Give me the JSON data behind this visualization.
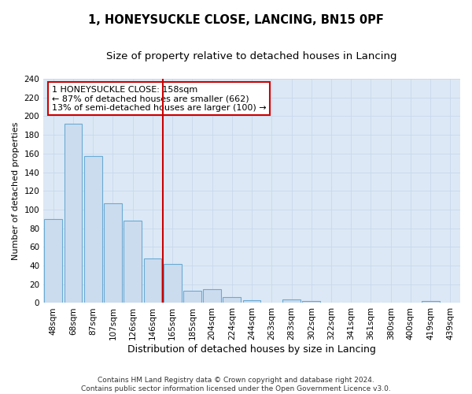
{
  "title": "1, HONEYSUCKLE CLOSE, LANCING, BN15 0PF",
  "subtitle": "Size of property relative to detached houses in Lancing",
  "xlabel": "Distribution of detached houses by size in Lancing",
  "ylabel": "Number of detached properties",
  "bar_labels": [
    "48sqm",
    "68sqm",
    "87sqm",
    "107sqm",
    "126sqm",
    "146sqm",
    "165sqm",
    "185sqm",
    "204sqm",
    "224sqm",
    "244sqm",
    "263sqm",
    "283sqm",
    "302sqm",
    "322sqm",
    "341sqm",
    "361sqm",
    "380sqm",
    "400sqm",
    "419sqm",
    "439sqm"
  ],
  "bar_values": [
    90,
    192,
    157,
    107,
    88,
    48,
    42,
    13,
    15,
    6,
    3,
    0,
    4,
    2,
    0,
    0,
    0,
    0,
    0,
    2,
    0
  ],
  "bar_color": "#ccdcef",
  "bar_edgecolor": "#6aaad4",
  "vline_x_idx": 6,
  "vline_color": "#cc0000",
  "annotation_text_line1": "1 HONEYSUCKLE CLOSE: 158sqm",
  "annotation_text_line2": "← 87% of detached houses are smaller (662)",
  "annotation_text_line3": "13% of semi-detached houses are larger (100) →",
  "annotation_box_facecolor": "white",
  "annotation_box_edgecolor": "#cc0000",
  "ylim": [
    0,
    240
  ],
  "yticks": [
    0,
    20,
    40,
    60,
    80,
    100,
    120,
    140,
    160,
    180,
    200,
    220,
    240
  ],
  "grid_color": "#c8d8ec",
  "background_color": "#dce8f5",
  "footer_line1": "Contains HM Land Registry data © Crown copyright and database right 2024.",
  "footer_line2": "Contains public sector information licensed under the Open Government Licence v3.0.",
  "title_fontsize": 10.5,
  "subtitle_fontsize": 9.5,
  "xlabel_fontsize": 9,
  "ylabel_fontsize": 8,
  "tick_fontsize": 7.5,
  "annot_fontsize": 8,
  "footer_fontsize": 6.5
}
